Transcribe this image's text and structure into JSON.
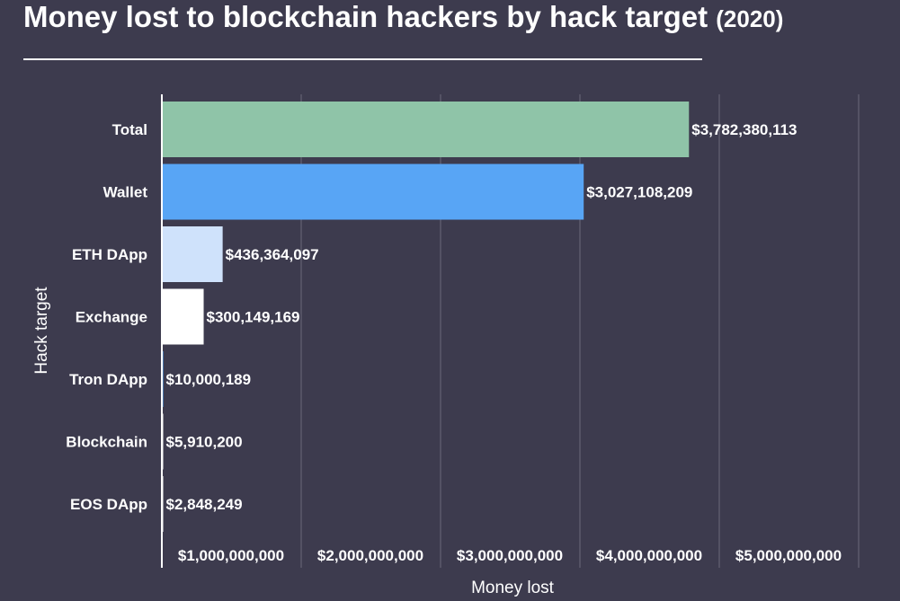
{
  "title": {
    "main": "Money lost to blockchain hackers by hack target",
    "year": "(2020)"
  },
  "chart_data": {
    "type": "bar",
    "orientation": "horizontal",
    "title": "Money lost to blockchain hackers by hack target (2020)",
    "xlabel": "Money lost",
    "ylabel": "Hack target",
    "xlim": [
      0,
      5000000000
    ],
    "grid": true,
    "categories": [
      "Total",
      "Wallet",
      "ETH DApp",
      "Exchange",
      "Tron DApp",
      "Blockchain",
      "EOS DApp"
    ],
    "values": [
      3782380113,
      3027108209,
      436364097,
      300149169,
      10000189,
      5910200,
      2848249
    ],
    "value_labels": [
      "$3,782,380,113",
      "$3,027,108,209",
      "$436,364,097",
      "$300,149,169",
      "$10,000,189",
      "$5,910,200",
      "$2,848,249"
    ],
    "colors": [
      "#8fc4a8",
      "#58a5f5",
      "#cfe2fb",
      "#ffffff",
      "#58a5f5",
      "#ffffff",
      "#ffffff"
    ],
    "ticks": [
      1000000000,
      2000000000,
      3000000000,
      4000000000,
      5000000000
    ],
    "tick_labels": [
      "$1,000,000,000",
      "$2,000,000,000",
      "$3,000,000,000",
      "$4,000,000,000",
      "$5,000,000,000"
    ]
  },
  "colors": {
    "background": "#3d3b4e",
    "grid": "#6a687a",
    "text": "#ffffff"
  }
}
